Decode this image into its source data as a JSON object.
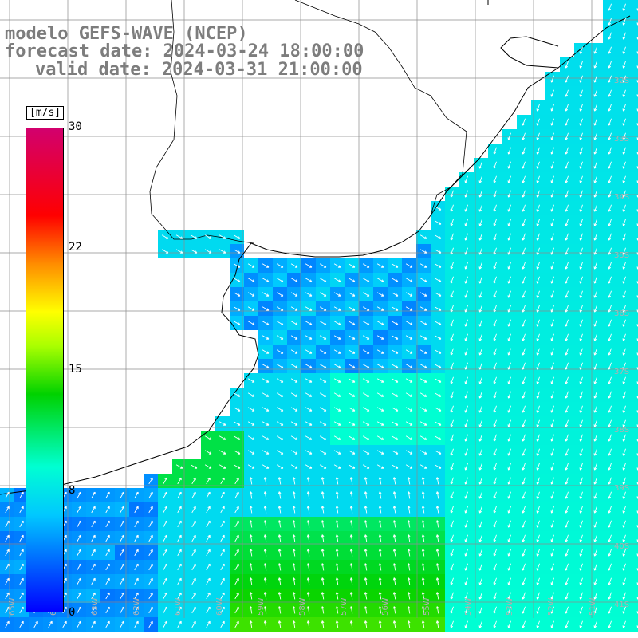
{
  "title": {
    "model": "modelo GEFS-WAVE (NCEP)",
    "forecast": "forecast date: 2024-03-24 18:00:00",
    "valid": "valid date: 2024-03-31 21:00:00"
  },
  "colorbar": {
    "unit": "[m/s]",
    "ticks": [
      "30",
      "22",
      "15",
      "8",
      "0"
    ],
    "gradient": [
      "#0000ff",
      "#00c8ff",
      "#00ffd2",
      "#00d200",
      "#aaff00",
      "#ffff00",
      "#ff8c00",
      "#ff0000",
      "#d2006e"
    ]
  },
  "map": {
    "lat_labels": [
      "32S",
      "33S",
      "34S",
      "35S",
      "36S",
      "37S",
      "38S",
      "39S",
      "40S",
      "41S"
    ],
    "lon_labels": [
      "65W",
      "64W",
      "63W",
      "62W",
      "61W",
      "60W",
      "59W",
      "58W",
      "57W",
      "56W",
      "55W",
      "54W",
      "53W",
      "52W",
      "51W"
    ],
    "land_color": "#ffffff",
    "grid_color": "#8c8c8c"
  }
}
